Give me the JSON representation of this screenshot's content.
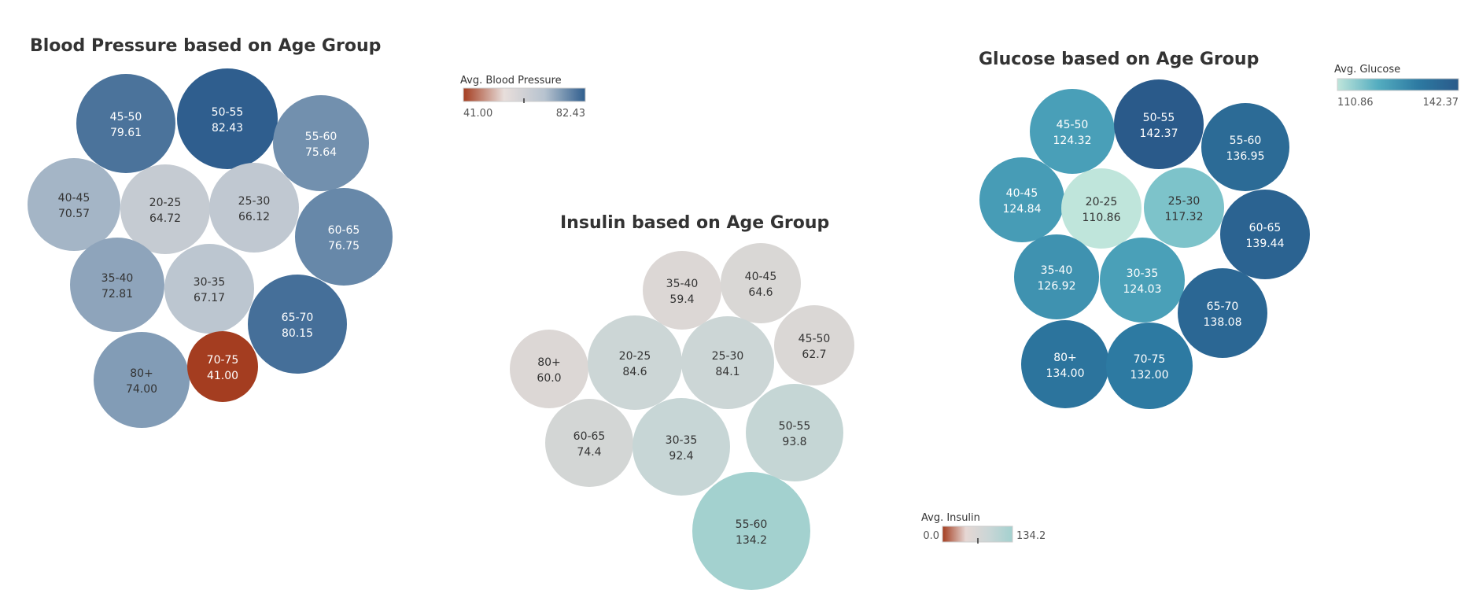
{
  "chart_data": [
    {
      "type": "bubble",
      "title": "Blood Pressure based on Age Group",
      "measure": "Avg. Blood Pressure",
      "color_range": [
        41.0,
        82.43
      ],
      "legend_ticks": [
        "41.00",
        "82.43"
      ],
      "palette": [
        "#a43d20",
        "#e8dedb",
        "#b7c3cf",
        "#2f5e8e"
      ],
      "points": [
        {
          "category": "45-50",
          "value": "79.61"
        },
        {
          "category": "50-55",
          "value": "82.43"
        },
        {
          "category": "55-60",
          "value": "75.64"
        },
        {
          "category": "40-45",
          "value": "70.57"
        },
        {
          "category": "20-25",
          "value": "64.72"
        },
        {
          "category": "25-30",
          "value": "66.12"
        },
        {
          "category": "60-65",
          "value": "76.75"
        },
        {
          "category": "35-40",
          "value": "72.81"
        },
        {
          "category": "30-35",
          "value": "67.17"
        },
        {
          "category": "65-70",
          "value": "80.15"
        },
        {
          "category": "80+",
          "value": "74.00"
        },
        {
          "category": "70-75",
          "value": "41.00"
        }
      ]
    },
    {
      "type": "bubble",
      "title": "Insulin based on Age Group",
      "measure": "Avg. Insulin",
      "color_range": [
        0.0,
        134.2
      ],
      "legend_ticks": [
        "0.0",
        "134.2"
      ],
      "palette": [
        "#a43d20",
        "#e6d7d4",
        "#c9d6d6",
        "#a3d1cf"
      ],
      "points": [
        {
          "category": "35-40",
          "value": "59.4"
        },
        {
          "category": "40-45",
          "value": "64.6"
        },
        {
          "category": "45-50",
          "value": "62.7"
        },
        {
          "category": "80+",
          "value": "60.0"
        },
        {
          "category": "20-25",
          "value": "84.6"
        },
        {
          "category": "25-30",
          "value": "84.1"
        },
        {
          "category": "60-65",
          "value": "74.4"
        },
        {
          "category": "30-35",
          "value": "92.4"
        },
        {
          "category": "50-55",
          "value": "93.8"
        },
        {
          "category": "55-60",
          "value": "134.2"
        }
      ]
    },
    {
      "type": "bubble",
      "title": "Glucose based on Age Group",
      "measure": "Avg. Glucose",
      "color_range": [
        110.86,
        142.37
      ],
      "legend_ticks": [
        "110.86",
        "142.37"
      ],
      "palette": [
        "#bfe5db",
        "#54adc0",
        "#2d7aa2",
        "#2a5a8a"
      ],
      "points": [
        {
          "category": "45-50",
          "value": "124.32"
        },
        {
          "category": "50-55",
          "value": "142.37"
        },
        {
          "category": "55-60",
          "value": "136.95"
        },
        {
          "category": "40-45",
          "value": "124.84"
        },
        {
          "category": "20-25",
          "value": "110.86"
        },
        {
          "category": "25-30",
          "value": "117.32"
        },
        {
          "category": "60-65",
          "value": "139.44"
        },
        {
          "category": "35-40",
          "value": "126.92"
        },
        {
          "category": "30-35",
          "value": "124.03"
        },
        {
          "category": "65-70",
          "value": "138.08"
        },
        {
          "category": "80+",
          "value": "134.00"
        },
        {
          "category": "70-75",
          "value": "132.00"
        }
      ]
    }
  ]
}
